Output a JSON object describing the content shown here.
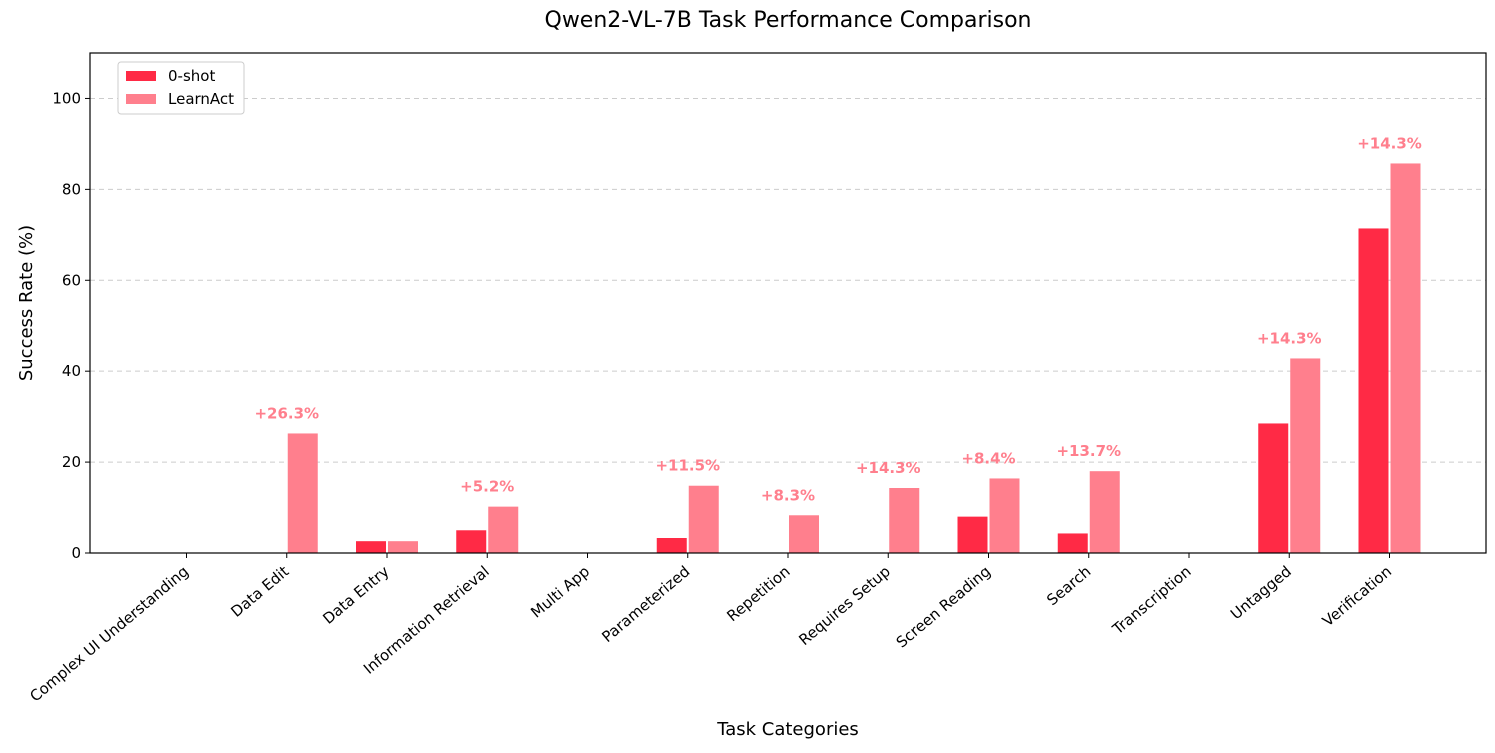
{
  "chart_data": {
    "type": "bar",
    "title": "Qwen2-VL-7B Task Performance Comparison",
    "xlabel": "Task Categories",
    "ylabel": "Success Rate (%)",
    "ylim": [
      0,
      110
    ],
    "yticks": [
      0,
      20,
      40,
      60,
      80,
      100
    ],
    "grid": true,
    "legend_position": "top-left",
    "categories": [
      "Complex UI Understanding",
      "Data Edit",
      "Data Entry",
      "Information Retrieval",
      "Multi App",
      "Parameterized",
      "Repetition",
      "Requires Setup",
      "Screen Reading",
      "Search",
      "Transcription",
      "Untagged",
      "Verification"
    ],
    "series": [
      {
        "name": "0-shot",
        "color": "#ff2a45",
        "values": [
          0,
          0,
          2.6,
          5.0,
          0,
          3.3,
          0,
          0,
          8.0,
          4.3,
          0,
          28.5,
          71.4
        ]
      },
      {
        "name": "LearnAct",
        "color": "#ff7f8d",
        "values": [
          0,
          26.3,
          2.6,
          10.2,
          0,
          14.8,
          8.3,
          14.3,
          16.4,
          18.0,
          0,
          42.8,
          85.7
        ]
      }
    ],
    "annotations": [
      {
        "category": "Data Edit",
        "text": "+26.3%"
      },
      {
        "category": "Information Retrieval",
        "text": "+5.2%"
      },
      {
        "category": "Parameterized",
        "text": "+11.5%"
      },
      {
        "category": "Repetition",
        "text": "+8.3%"
      },
      {
        "category": "Requires Setup",
        "text": "+14.3%"
      },
      {
        "category": "Screen Reading",
        "text": "+8.4%"
      },
      {
        "category": "Search",
        "text": "+13.7%"
      },
      {
        "category": "Untagged",
        "text": "+14.3%"
      },
      {
        "category": "Verification",
        "text": "+14.3%"
      }
    ],
    "annotation_color": "#ff7f8d"
  }
}
